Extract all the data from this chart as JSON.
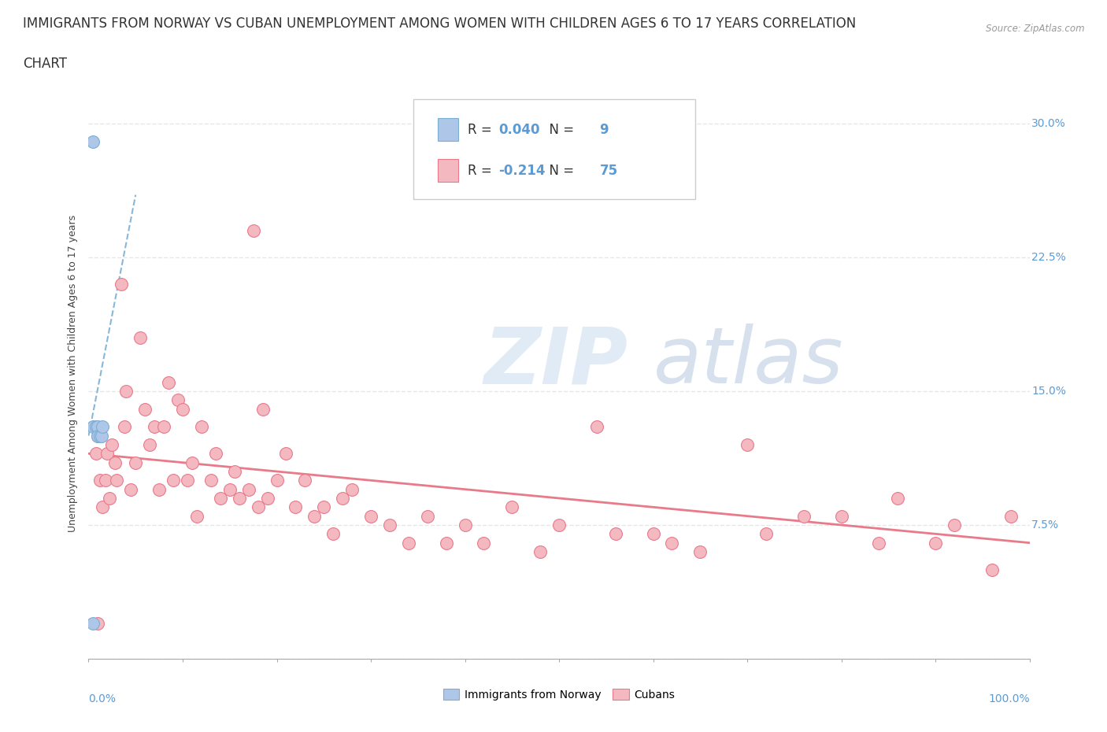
{
  "title_line1": "IMMIGRANTS FROM NORWAY VS CUBAN UNEMPLOYMENT AMONG WOMEN WITH CHILDREN AGES 6 TO 17 YEARS CORRELATION",
  "title_line2": "CHART",
  "source": "Source: ZipAtlas.com",
  "ylabel": "Unemployment Among Women with Children Ages 6 to 17 years",
  "xlim": [
    0.0,
    1.0
  ],
  "ylim": [
    0.0,
    0.32
  ],
  "norway_color": "#aec6e8",
  "cuba_color": "#f4b8c1",
  "norway_edge": "#7bafd4",
  "cuba_edge": "#e87a8a",
  "trendline_norway_color": "#7bafd4",
  "trendline_cuba_color": "#e87a8a",
  "R_norway": 0.04,
  "N_norway": 9,
  "R_cuba": -0.214,
  "N_cuba": 75,
  "background_color": "#ffffff",
  "grid_color": "#e0e0e0",
  "watermark": "ZIPatlas",
  "watermark_color_zip": "#c8d8ef",
  "watermark_color_atlas": "#b8c8df",
  "norway_x": [
    0.005,
    0.005,
    0.008,
    0.01,
    0.01,
    0.012,
    0.014,
    0.015,
    0.005
  ],
  "norway_y": [
    0.29,
    0.13,
    0.13,
    0.13,
    0.125,
    0.125,
    0.125,
    0.13,
    0.02
  ],
  "cuba_x": [
    0.008,
    0.01,
    0.012,
    0.015,
    0.018,
    0.02,
    0.022,
    0.025,
    0.028,
    0.03,
    0.035,
    0.038,
    0.04,
    0.045,
    0.05,
    0.055,
    0.06,
    0.065,
    0.07,
    0.075,
    0.08,
    0.085,
    0.09,
    0.095,
    0.1,
    0.105,
    0.11,
    0.115,
    0.12,
    0.13,
    0.135,
    0.14,
    0.15,
    0.155,
    0.16,
    0.17,
    0.175,
    0.18,
    0.185,
    0.19,
    0.2,
    0.21,
    0.22,
    0.23,
    0.24,
    0.25,
    0.26,
    0.27,
    0.28,
    0.3,
    0.32,
    0.34,
    0.36,
    0.38,
    0.4,
    0.42,
    0.45,
    0.48,
    0.5,
    0.54,
    0.56,
    0.6,
    0.62,
    0.65,
    0.7,
    0.72,
    0.76,
    0.8,
    0.84,
    0.86,
    0.9,
    0.92,
    0.96,
    0.98,
    0.01
  ],
  "cuba_y": [
    0.115,
    0.125,
    0.1,
    0.085,
    0.1,
    0.115,
    0.09,
    0.12,
    0.11,
    0.1,
    0.21,
    0.13,
    0.15,
    0.095,
    0.11,
    0.18,
    0.14,
    0.12,
    0.13,
    0.095,
    0.13,
    0.155,
    0.1,
    0.145,
    0.14,
    0.1,
    0.11,
    0.08,
    0.13,
    0.1,
    0.115,
    0.09,
    0.095,
    0.105,
    0.09,
    0.095,
    0.24,
    0.085,
    0.14,
    0.09,
    0.1,
    0.115,
    0.085,
    0.1,
    0.08,
    0.085,
    0.07,
    0.09,
    0.095,
    0.08,
    0.075,
    0.065,
    0.08,
    0.065,
    0.075,
    0.065,
    0.085,
    0.06,
    0.075,
    0.13,
    0.07,
    0.07,
    0.065,
    0.06,
    0.12,
    0.07,
    0.08,
    0.08,
    0.065,
    0.09,
    0.065,
    0.075,
    0.05,
    0.08,
    0.02
  ],
  "norway_trend_x": [
    0.0,
    0.05
  ],
  "norway_trend_y": [
    0.125,
    0.26
  ],
  "cuba_trend_x": [
    0.0,
    1.0
  ],
  "cuba_trend_y": [
    0.115,
    0.065
  ],
  "title_fontsize": 12,
  "axis_label_fontsize": 9,
  "tick_fontsize": 10,
  "legend_fontsize": 12
}
